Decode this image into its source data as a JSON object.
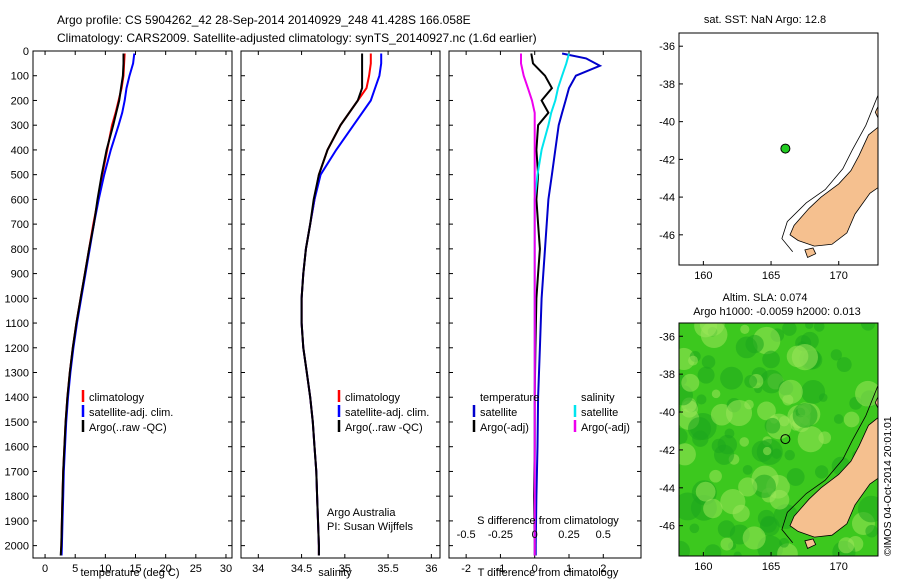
{
  "header": {
    "line1": "Argo profile: CS 5904262_42 28-Sep-2014 20140929_248 41.428S 166.058E",
    "line2": "Climatology: CARS2009. Satellite-adjusted climatology: synTS_20140927.nc (1.6d earlier)"
  },
  "colors": {
    "climatology": "#ff0000",
    "satellite": "#0000ff",
    "argo": "#000000",
    "temp_satellite_diff": "#0000cc",
    "sal_satellite_diff": "#00e5ee",
    "sal_argo_diff": "#ee00ee",
    "land": "#f5c08f",
    "sea_bg": "#ffffff",
    "sla_green": "#3cc81e",
    "float_marker": "#22cc22"
  },
  "depth_axis": {
    "ticks": [
      "0",
      "100",
      "200",
      "300",
      "400",
      "500",
      "600",
      "700",
      "800",
      "900",
      "1000",
      "1100",
      "1200",
      "1300",
      "1400",
      "1500",
      "1600",
      "1700",
      "1800",
      "1900",
      "2000"
    ]
  },
  "chart_data": [
    {
      "id": "temperature",
      "type": "line",
      "xlabel": "temperature (deg C)",
      "xlim": [
        -2,
        31
      ],
      "ylim": [
        2050,
        0
      ],
      "xticks": [
        "0",
        "5",
        "10",
        "15",
        "20",
        "25",
        "30"
      ],
      "legend": [
        "climatology",
        "satellite-adj. clim.",
        "Argo(..raw -QC)"
      ],
      "series": [
        {
          "name": "climatology",
          "depth": [
            10,
            50,
            100,
            150,
            200,
            250,
            300,
            400,
            500,
            600,
            700,
            800,
            900,
            1000,
            1100,
            1200,
            1300,
            1400,
            1500,
            1600,
            1700,
            1800,
            1900,
            2000,
            2040
          ],
          "values": [
            13.2,
            13.1,
            13.0,
            12.7,
            12.2,
            11.7,
            11.1,
            10.3,
            9.5,
            8.8,
            8.0,
            7.3,
            6.6,
            5.9,
            5.2,
            4.6,
            4.1,
            3.7,
            3.4,
            3.2,
            3.0,
            2.9,
            2.8,
            2.7,
            2.65
          ]
        },
        {
          "name": "satellite-adj. clim.",
          "depth": [
            10,
            50,
            100,
            150,
            200,
            250,
            300,
            400,
            500,
            600,
            700,
            800,
            900,
            1000,
            1100,
            1200,
            1300,
            1400,
            1500,
            1600,
            1700,
            1800,
            1900,
            2000,
            2040
          ],
          "values": [
            14.8,
            14.6,
            14.0,
            13.5,
            13.2,
            12.8,
            12.2,
            10.9,
            9.8,
            8.9,
            8.1,
            7.4,
            6.7,
            6.0,
            5.3,
            4.7,
            4.2,
            3.8,
            3.5,
            3.3,
            3.1,
            3.0,
            2.9,
            2.8,
            2.75
          ]
        },
        {
          "name": "Argo(..raw -QC)",
          "depth": [
            10,
            50,
            100,
            150,
            200,
            250,
            300,
            400,
            500,
            600,
            700,
            800,
            900,
            1000,
            1100,
            1200,
            1300,
            1400,
            1500,
            1600,
            1700,
            1800,
            1900,
            2000,
            2040
          ],
          "values": [
            13.0,
            13.0,
            12.9,
            12.6,
            12.3,
            11.8,
            11.3,
            10.2,
            9.4,
            8.7,
            8.1,
            7.3,
            6.6,
            5.9,
            5.2,
            4.6,
            4.1,
            3.7,
            3.4,
            3.2,
            3.0,
            2.9,
            2.8,
            2.7,
            2.6
          ]
        }
      ]
    },
    {
      "id": "salinity",
      "type": "line",
      "xlabel": "salinity",
      "xlim": [
        33.8,
        36.1
      ],
      "ylim": [
        2050,
        0
      ],
      "xticks": [
        "34",
        "34.5",
        "35",
        "35.5",
        "36"
      ],
      "legend": [
        "climatology",
        "satellite-adj. clim.",
        "Argo(..raw -QC)"
      ],
      "annotation": [
        "Argo Australia",
        "PI: Susan Wijffels"
      ],
      "series": [
        {
          "name": "climatology",
          "depth": [
            10,
            50,
            100,
            150,
            200,
            300,
            400,
            500,
            600,
            700,
            800,
            900,
            1000,
            1100,
            1200,
            1300,
            1400,
            1500,
            1600,
            1700,
            1800,
            1900,
            2000,
            2040
          ],
          "values": [
            35.3,
            35.3,
            35.28,
            35.25,
            35.15,
            34.95,
            34.8,
            34.7,
            34.65,
            34.6,
            34.55,
            34.52,
            34.5,
            34.5,
            34.52,
            34.56,
            34.6,
            34.63,
            34.65,
            34.67,
            34.68,
            34.69,
            34.7,
            34.7
          ]
        },
        {
          "name": "satellite-adj. clim.",
          "depth": [
            10,
            50,
            100,
            150,
            200,
            300,
            400,
            500,
            600,
            700,
            800,
            900,
            1000,
            1100,
            1200,
            1300,
            1400,
            1500,
            1600,
            1700,
            1800,
            1900,
            2000,
            2040
          ],
          "values": [
            35.42,
            35.42,
            35.4,
            35.35,
            35.3,
            35.1,
            34.9,
            34.72,
            34.65,
            34.6,
            34.55,
            34.52,
            34.5,
            34.5,
            34.52,
            34.56,
            34.6,
            34.63,
            34.65,
            34.67,
            34.68,
            34.69,
            34.7,
            34.7
          ]
        },
        {
          "name": "Argo(..raw -QC)",
          "depth": [
            10,
            50,
            100,
            150,
            200,
            300,
            400,
            500,
            600,
            700,
            800,
            900,
            1000,
            1100,
            1200,
            1300,
            1400,
            1500,
            1600,
            1700,
            1800,
            1900,
            2000,
            2040
          ],
          "values": [
            35.2,
            35.2,
            35.2,
            35.2,
            35.15,
            34.95,
            34.8,
            34.7,
            34.64,
            34.6,
            34.55,
            34.52,
            34.5,
            34.5,
            34.52,
            34.56,
            34.6,
            34.63,
            34.65,
            34.67,
            34.68,
            34.69,
            34.7,
            34.7
          ]
        }
      ]
    },
    {
      "id": "differences",
      "type": "line",
      "xlabel": "T difference from climatology",
      "xlabel_top": "S difference from climatology",
      "xlim": [
        -2.5,
        3.1
      ],
      "ylim": [
        2050,
        0
      ],
      "xticks": [
        "-2",
        "-1",
        "0",
        "1",
        "2"
      ],
      "xticks_s": [
        "-0.5",
        "-0.25",
        "0",
        "0.25",
        "0.5"
      ],
      "legend_titles": [
        "temperature",
        "salinity"
      ],
      "legend_temperature": [
        "satellite",
        "Argo(-adj)"
      ],
      "legend_salinity": [
        "satellite",
        "Argo(-adj)"
      ],
      "series": [
        {
          "name": "T satellite",
          "depth": [
            10,
            30,
            60,
            100,
            150,
            200,
            250,
            300,
            400,
            500,
            600,
            700,
            800,
            900,
            1000,
            1200,
            1400,
            1600,
            1800,
            2000,
            2040
          ],
          "values": [
            0.8,
            1.5,
            1.9,
            1.2,
            1.0,
            0.9,
            0.8,
            0.7,
            0.6,
            0.5,
            0.4,
            0.35,
            0.3,
            0.25,
            0.2,
            0.15,
            0.1,
            0.08,
            0.05,
            0.03,
            0.03
          ]
        },
        {
          "name": "T Argo(-adj)",
          "depth": [
            10,
            50,
            100,
            150,
            200,
            250,
            300,
            400,
            500,
            600,
            700,
            800,
            900,
            1000,
            1200,
            1400,
            1600,
            1800,
            2000,
            2040
          ],
          "values": [
            -0.1,
            -0.05,
            0.3,
            0.5,
            0.2,
            0.4,
            0.1,
            0.05,
            0.1,
            0.05,
            0.1,
            0.15,
            0.1,
            0.05,
            0.02,
            0.0,
            0.0,
            -0.02,
            0.0,
            0.0
          ]
        },
        {
          "name": "S satellite",
          "depth": [
            10,
            50,
            100,
            150,
            200,
            250,
            300,
            400,
            500,
            600,
            700,
            800,
            900,
            1000,
            1200,
            1400,
            1600,
            1800,
            2000,
            2040
          ],
          "values": [
            0.25,
            0.23,
            0.2,
            0.17,
            0.15,
            0.12,
            0.1,
            0.05,
            0.02,
            0.0,
            0.0,
            0.0,
            0.0,
            0.0,
            0.0,
            0.0,
            0.0,
            0.0,
            0.0,
            0.0
          ]
        },
        {
          "name": "S Argo(-adj)",
          "depth": [
            10,
            50,
            100,
            150,
            200,
            250,
            300,
            400,
            500,
            600,
            700,
            800,
            900,
            1000,
            1200,
            1400,
            1600,
            1800,
            2000,
            2040
          ],
          "values": [
            -0.1,
            -0.1,
            -0.08,
            -0.05,
            -0.02,
            0.0,
            0.0,
            0.0,
            0.0,
            0.0,
            0.0,
            0.0,
            0.0,
            0.0,
            0.0,
            0.0,
            0.0,
            0.0,
            0.0,
            0.0
          ]
        }
      ]
    }
  ],
  "maps": {
    "sst": {
      "title": "sat. SST: NaN Argo: 12.8",
      "xticks": [
        "160",
        "165",
        "170"
      ],
      "yticks": [
        "-36",
        "-38",
        "-40",
        "-42",
        "-44",
        "-46"
      ],
      "marker_lon": 166.058,
      "marker_lat": -41.428
    },
    "sla": {
      "title1": "Altim. SLA: 0.074",
      "title2": "Argo h1000: -0.0059 h2000: 0.013",
      "xticks": [
        "160",
        "165",
        "170"
      ],
      "yticks": [
        "-36",
        "-38",
        "-40",
        "-42",
        "-44",
        "-46"
      ],
      "marker_lon": 166.058,
      "marker_lat": -41.428,
      "credit": "©IMOS 04-Oct-2014 20:01:01"
    }
  }
}
